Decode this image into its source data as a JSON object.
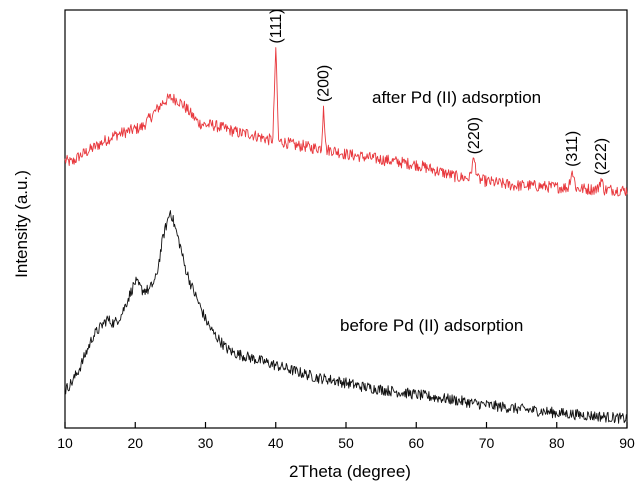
{
  "chart_data": {
    "type": "line",
    "title": "",
    "xlabel": "2Theta (degree)",
    "ylabel": "Intensity (a.u.)",
    "xlim": [
      10,
      90
    ],
    "ylim": [
      0,
      100
    ],
    "x_ticks": [
      10,
      20,
      30,
      40,
      50,
      60,
      70,
      80,
      90
    ],
    "y_ticks_shown": false,
    "grid": false,
    "legend": "none",
    "series": [
      {
        "color": "#e8383d",
        "points": [
          [
            10,
            64
          ],
          [
            11,
            63.5
          ],
          [
            12,
            65
          ],
          [
            13,
            66
          ],
          [
            14,
            67
          ],
          [
            15,
            68
          ],
          [
            16,
            69
          ],
          [
            17,
            70
          ],
          [
            18,
            70.5
          ],
          [
            19,
            71
          ],
          [
            20,
            71.5
          ],
          [
            21,
            72
          ],
          [
            22,
            74
          ],
          [
            23,
            76
          ],
          [
            24,
            78
          ],
          [
            25,
            79
          ],
          [
            26,
            78.5
          ],
          [
            27,
            77
          ],
          [
            28,
            75
          ],
          [
            29,
            73
          ],
          [
            30,
            72.5
          ],
          [
            31,
            72.5
          ],
          [
            32,
            72
          ],
          [
            33,
            71.5
          ],
          [
            34,
            71
          ],
          [
            35,
            70.5
          ],
          [
            36,
            70.5
          ],
          [
            37,
            70
          ],
          [
            38,
            69.5
          ],
          [
            39,
            69
          ],
          [
            39.6,
            69
          ],
          [
            40,
            91
          ],
          [
            40.4,
            68.5
          ],
          [
            41,
            68.5
          ],
          [
            42,
            68
          ],
          [
            43,
            67.5
          ],
          [
            44,
            67.5
          ],
          [
            45,
            67
          ],
          [
            46,
            67
          ],
          [
            46.5,
            67
          ],
          [
            46.8,
            77
          ],
          [
            47.2,
            66.5
          ],
          [
            48,
            66.5
          ],
          [
            50,
            65.5
          ],
          [
            52,
            65
          ],
          [
            54,
            64.5
          ],
          [
            56,
            64
          ],
          [
            58,
            63.5
          ],
          [
            60,
            63
          ],
          [
            62,
            62
          ],
          [
            64,
            61
          ],
          [
            66,
            60
          ],
          [
            67.6,
            59.8
          ],
          [
            68.2,
            64.5
          ],
          [
            68.8,
            59.5
          ],
          [
            70,
            59
          ],
          [
            72,
            58.5
          ],
          [
            74,
            58
          ],
          [
            76,
            58
          ],
          [
            78,
            57.8
          ],
          [
            80,
            57.6
          ],
          [
            81.6,
            57.5
          ],
          [
            82.2,
            61.5
          ],
          [
            82.8,
            57.3
          ],
          [
            84,
            57.2
          ],
          [
            85.8,
            57.1
          ],
          [
            86.3,
            59.5
          ],
          [
            86.8,
            57
          ],
          [
            88,
            57
          ],
          [
            90,
            56.8
          ]
        ]
      },
      {
        "color": "#111111",
        "points": [
          [
            10,
            9
          ],
          [
            11,
            11
          ],
          [
            12,
            14
          ],
          [
            13,
            18
          ],
          [
            14,
            22
          ],
          [
            15,
            24
          ],
          [
            16,
            26
          ],
          [
            17,
            25
          ],
          [
            18,
            27
          ],
          [
            19,
            31
          ],
          [
            20,
            35
          ],
          [
            21,
            33
          ],
          [
            22,
            33
          ],
          [
            23,
            36
          ],
          [
            24,
            46
          ],
          [
            25,
            52
          ],
          [
            26,
            46
          ],
          [
            26.5,
            43
          ],
          [
            27,
            39
          ],
          [
            28,
            34
          ],
          [
            29,
            30
          ],
          [
            30,
            26
          ],
          [
            31,
            23
          ],
          [
            32,
            21
          ],
          [
            33,
            19
          ],
          [
            34,
            18
          ],
          [
            35,
            17.5
          ],
          [
            36,
            17
          ],
          [
            37,
            16.5
          ],
          [
            38,
            16
          ],
          [
            40,
            15
          ],
          [
            42,
            14
          ],
          [
            44,
            13
          ],
          [
            46,
            12
          ],
          [
            48,
            11.5
          ],
          [
            50,
            10.8
          ],
          [
            52,
            10
          ],
          [
            55,
            9.2
          ],
          [
            58,
            8.5
          ],
          [
            60,
            8
          ],
          [
            62,
            7.5
          ],
          [
            65,
            6.8
          ],
          [
            68,
            6
          ],
          [
            70,
            5.5
          ],
          [
            72,
            5.1
          ],
          [
            75,
            4.5
          ],
          [
            78,
            4
          ],
          [
            80,
            3.6
          ],
          [
            83,
            3.2
          ],
          [
            86,
            2.8
          ],
          [
            88,
            2.5
          ],
          [
            90,
            2.2
          ]
        ]
      }
    ],
    "annotations": {
      "after_label": "after Pd (II) adsorption",
      "before_label": "before  Pd (II) adsorption"
    },
    "peak_labels": [
      {
        "text": "(111)",
        "x": 40.0
      },
      {
        "text": "(200)",
        "x": 46.8
      },
      {
        "text": "(220)",
        "x": 68.2
      },
      {
        "text": "(311)",
        "x": 82.2
      },
      {
        "text": "(222)",
        "x": 86.3
      }
    ]
  }
}
